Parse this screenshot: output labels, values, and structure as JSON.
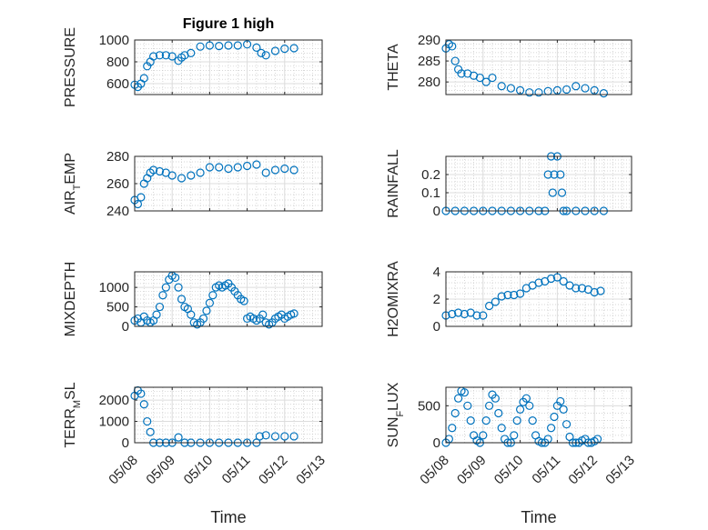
{
  "figure_title": "Figure 1 high",
  "marker_color": "#0072BD",
  "chart_data": [
    {
      "type": "scatter",
      "title": "Figure 1 high",
      "ylabel": "PRESSURE",
      "xlim": [
        "05/08",
        "05/13"
      ],
      "ylim": [
        500,
        1000
      ],
      "yticks": [
        600,
        800,
        1000
      ],
      "grid": true,
      "x": [
        "05/08 00:00",
        "05/08 02:00",
        "05/08 04:00",
        "05/08 06:00",
        "05/08 08:00",
        "05/08 10:00",
        "05/08 12:00",
        "05/08 16:00",
        "05/08 20:00",
        "05/09 00:00",
        "05/09 04:00",
        "05/09 06:00",
        "05/09 08:00",
        "05/09 12:00",
        "05/09 18:00",
        "05/10 00:00",
        "05/10 06:00",
        "05/10 12:00",
        "05/10 18:00",
        "05/11 00:00",
        "05/11 06:00",
        "05/11 09:00",
        "05/11 12:00",
        "05/11 18:00",
        "05/12 00:00",
        "05/12 06:00"
      ],
      "y": [
        590,
        570,
        600,
        650,
        760,
        800,
        850,
        860,
        860,
        850,
        810,
        840,
        860,
        880,
        940,
        950,
        945,
        950,
        950,
        960,
        930,
        880,
        860,
        900,
        920,
        925
      ]
    },
    {
      "type": "scatter",
      "ylabel": "THETA",
      "xlim": [
        "05/08",
        "05/13"
      ],
      "ylim": [
        277,
        290
      ],
      "yticks": [
        280,
        285,
        290
      ],
      "grid": true,
      "x": [
        "05/08 00:00",
        "05/08 02:00",
        "05/08 04:00",
        "05/08 06:00",
        "05/08 08:00",
        "05/08 10:00",
        "05/08 14:00",
        "05/08 18:00",
        "05/08 22:00",
        "05/09 02:00",
        "05/09 06:00",
        "05/09 12:00",
        "05/09 18:00",
        "05/10 00:00",
        "05/10 06:00",
        "05/10 12:00",
        "05/10 18:00",
        "05/11 00:00",
        "05/11 06:00",
        "05/11 12:00",
        "05/11 18:00",
        "05/12 00:00",
        "05/12 06:00"
      ],
      "y": [
        288,
        289,
        288.5,
        285,
        283,
        282,
        282,
        281.5,
        281,
        280,
        281,
        279,
        278.5,
        278,
        277.5,
        277.5,
        277.8,
        278,
        278.2,
        279,
        278.5,
        278.0,
        277.3
      ]
    },
    {
      "type": "scatter",
      "ylabel": "AIR_TEMP",
      "xlim": [
        "05/08",
        "05/13"
      ],
      "ylim": [
        240,
        280
      ],
      "yticks": [
        240,
        260,
        280
      ],
      "grid": true,
      "x": [
        "05/08 00:00",
        "05/08 02:00",
        "05/08 04:00",
        "05/08 06:00",
        "05/08 08:00",
        "05/08 10:00",
        "05/08 12:00",
        "05/08 16:00",
        "05/08 20:00",
        "05/09 00:00",
        "05/09 06:00",
        "05/09 12:00",
        "05/09 18:00",
        "05/10 00:00",
        "05/10 06:00",
        "05/10 12:00",
        "05/10 18:00",
        "05/11 00:00",
        "05/11 06:00",
        "05/11 12:00",
        "05/11 18:00",
        "05/12 00:00",
        "05/12 06:00"
      ],
      "y": [
        248,
        245,
        250,
        260,
        264,
        268,
        270,
        269,
        268,
        266,
        264,
        266,
        268,
        272,
        272,
        271,
        272,
        273,
        274,
        268,
        270,
        271,
        270
      ]
    },
    {
      "type": "scatter",
      "ylabel": "RAINFALL",
      "xlim": [
        "05/08",
        "05/13"
      ],
      "ylim": [
        0,
        0.3
      ],
      "yticks": [
        0,
        0.1,
        0.2
      ],
      "grid": true,
      "x": [
        "05/08 00:00",
        "05/08 06:00",
        "05/08 12:00",
        "05/08 18:00",
        "05/09 00:00",
        "05/09 06:00",
        "05/09 12:00",
        "05/09 18:00",
        "05/10 00:00",
        "05/10 06:00",
        "05/10 12:00",
        "05/10 16:00",
        "05/10 18:00",
        "05/10 20:00",
        "05/10 21:00",
        "05/10 22:00",
        "05/11 00:00",
        "05/11 02:00",
        "05/11 03:00",
        "05/11 04:00",
        "05/11 06:00",
        "05/11 12:00",
        "05/11 18:00",
        "05/12 00:00",
        "05/12 06:00"
      ],
      "y": [
        0,
        0,
        0,
        0,
        0,
        0,
        0,
        0,
        0,
        0,
        0,
        0,
        0.2,
        0.3,
        0.1,
        0.2,
        0.3,
        0.2,
        0.1,
        0,
        0,
        0,
        0,
        0,
        0
      ]
    },
    {
      "type": "scatter",
      "ylabel": "MIXDEPTH",
      "xlim": [
        "05/08",
        "05/13"
      ],
      "ylim": [
        0,
        1400
      ],
      "yticks": [
        0,
        500,
        1000
      ],
      "grid": true,
      "x": [
        "05/08 00:00",
        "05/08 02:00",
        "05/08 04:00",
        "05/08 06:00",
        "05/08 08:00",
        "05/08 10:00",
        "05/08 12:00",
        "05/08 14:00",
        "05/08 16:00",
        "05/08 18:00",
        "05/08 20:00",
        "05/08 22:00",
        "05/09 00:00",
        "05/09 02:00",
        "05/09 04:00",
        "05/09 06:00",
        "05/09 08:00",
        "05/09 10:00",
        "05/09 12:00",
        "05/09 14:00",
        "05/09 16:00",
        "05/09 18:00",
        "05/09 20:00",
        "05/09 22:00",
        "05/10 00:00",
        "05/10 02:00",
        "05/10 04:00",
        "05/10 06:00",
        "05/10 08:00",
        "05/10 10:00",
        "05/10 12:00",
        "05/10 14:00",
        "05/10 16:00",
        "05/10 18:00",
        "05/10 20:00",
        "05/10 22:00",
        "05/11 00:00",
        "05/11 02:00",
        "05/11 04:00",
        "05/11 06:00",
        "05/11 08:00",
        "05/11 10:00",
        "05/11 12:00",
        "05/11 14:00",
        "05/11 16:00",
        "05/11 18:00",
        "05/11 20:00",
        "05/11 22:00",
        "05/12 00:00",
        "05/12 02:00",
        "05/12 04:00",
        "05/12 06:00"
      ],
      "y": [
        150,
        200,
        100,
        250,
        150,
        100,
        150,
        300,
        500,
        800,
        1000,
        1200,
        1300,
        1250,
        1000,
        700,
        500,
        450,
        300,
        100,
        50,
        100,
        200,
        400,
        600,
        800,
        1000,
        1050,
        1000,
        1050,
        1100,
        1000,
        900,
        800,
        700,
        650,
        200,
        250,
        200,
        150,
        200,
        300,
        100,
        50,
        100,
        200,
        250,
        300,
        200,
        250,
        300,
        330
      ]
    },
    {
      "type": "scatter",
      "ylabel": "H2OMIXRA",
      "xlim": [
        "05/08",
        "05/13"
      ],
      "ylim": [
        0,
        4
      ],
      "yticks": [
        0,
        2,
        4
      ],
      "grid": true,
      "x": [
        "05/08 00:00",
        "05/08 04:00",
        "05/08 08:00",
        "05/08 12:00",
        "05/08 16:00",
        "05/08 20:00",
        "05/09 00:00",
        "05/09 04:00",
        "05/09 08:00",
        "05/09 12:00",
        "05/09 16:00",
        "05/09 20:00",
        "05/10 00:00",
        "05/10 04:00",
        "05/10 08:00",
        "05/10 12:00",
        "05/10 16:00",
        "05/10 20:00",
        "05/11 00:00",
        "05/11 04:00",
        "05/11 08:00",
        "05/11 12:00",
        "05/11 16:00",
        "05/11 20:00",
        "05/12 00:00",
        "05/12 04:00"
      ],
      "y": [
        0.8,
        0.9,
        1.0,
        0.9,
        1.0,
        0.8,
        0.8,
        1.5,
        1.8,
        2.2,
        2.3,
        2.3,
        2.4,
        2.8,
        3.0,
        3.2,
        3.3,
        3.5,
        3.6,
        3.3,
        3.0,
        2.8,
        2.8,
        2.7,
        2.5,
        2.6
      ]
    },
    {
      "type": "scatter",
      "ylabel": "TERR_MSL",
      "xlim": [
        "05/08",
        "05/13"
      ],
      "ylim": [
        0,
        2600
      ],
      "yticks": [
        0,
        1000,
        2000
      ],
      "xticks": [
        "05/08",
        "05/09",
        "05/10",
        "05/11",
        "05/12",
        "05/13"
      ],
      "xlabel": "Time",
      "grid": true,
      "x": [
        "05/08 00:00",
        "05/08 02:00",
        "05/08 04:00",
        "05/08 06:00",
        "05/08 08:00",
        "05/08 10:00",
        "05/08 12:00",
        "05/08 16:00",
        "05/08 20:00",
        "05/09 00:00",
        "05/09 04:00",
        "05/09 08:00",
        "05/09 12:00",
        "05/09 18:00",
        "05/10 00:00",
        "05/10 06:00",
        "05/10 12:00",
        "05/10 18:00",
        "05/11 00:00",
        "05/11 06:00",
        "05/11 08:00",
        "05/11 12:00",
        "05/11 18:00",
        "05/12 00:00",
        "05/12 06:00"
      ],
      "y": [
        2200,
        2450,
        2300,
        1800,
        1000,
        500,
        0,
        0,
        0,
        0,
        250,
        0,
        0,
        0,
        0,
        0,
        0,
        0,
        0,
        0,
        300,
        350,
        300,
        300,
        300
      ]
    },
    {
      "type": "scatter",
      "ylabel": "SUN_FLUX",
      "xlim": [
        "05/08",
        "05/13"
      ],
      "ylim": [
        0,
        750
      ],
      "yticks": [
        0,
        500
      ],
      "xticks": [
        "05/08",
        "05/09",
        "05/10",
        "05/11",
        "05/12",
        "05/13"
      ],
      "xlabel": "Time",
      "grid": true,
      "x": [
        "05/08 00:00",
        "05/08 02:00",
        "05/08 04:00",
        "05/08 06:00",
        "05/08 08:00",
        "05/08 10:00",
        "05/08 12:00",
        "05/08 14:00",
        "05/08 16:00",
        "05/08 18:00",
        "05/08 20:00",
        "05/08 22:00",
        "05/09 00:00",
        "05/09 02:00",
        "05/09 04:00",
        "05/09 06:00",
        "05/09 08:00",
        "05/09 10:00",
        "05/09 12:00",
        "05/09 14:00",
        "05/09 16:00",
        "05/09 18:00",
        "05/09 20:00",
        "05/09 22:00",
        "05/10 00:00",
        "05/10 02:00",
        "05/10 04:00",
        "05/10 06:00",
        "05/10 08:00",
        "05/10 10:00",
        "05/10 12:00",
        "05/10 14:00",
        "05/10 16:00",
        "05/10 18:00",
        "05/10 20:00",
        "05/10 22:00",
        "05/11 00:00",
        "05/11 02:00",
        "05/11 04:00",
        "05/11 06:00",
        "05/11 08:00",
        "05/11 10:00",
        "05/11 12:00",
        "05/11 14:00",
        "05/11 16:00",
        "05/11 18:00",
        "05/11 20:00",
        "05/11 22:00",
        "05/12 00:00",
        "05/12 02:00"
      ],
      "y": [
        0,
        50,
        200,
        400,
        600,
        700,
        680,
        500,
        300,
        100,
        30,
        0,
        100,
        300,
        500,
        650,
        600,
        400,
        200,
        50,
        0,
        0,
        100,
        300,
        450,
        550,
        600,
        500,
        300,
        100,
        20,
        0,
        0,
        50,
        200,
        350,
        500,
        560,
        450,
        250,
        80,
        0,
        0,
        0,
        30,
        50,
        0,
        0,
        20,
        50
      ]
    }
  ]
}
